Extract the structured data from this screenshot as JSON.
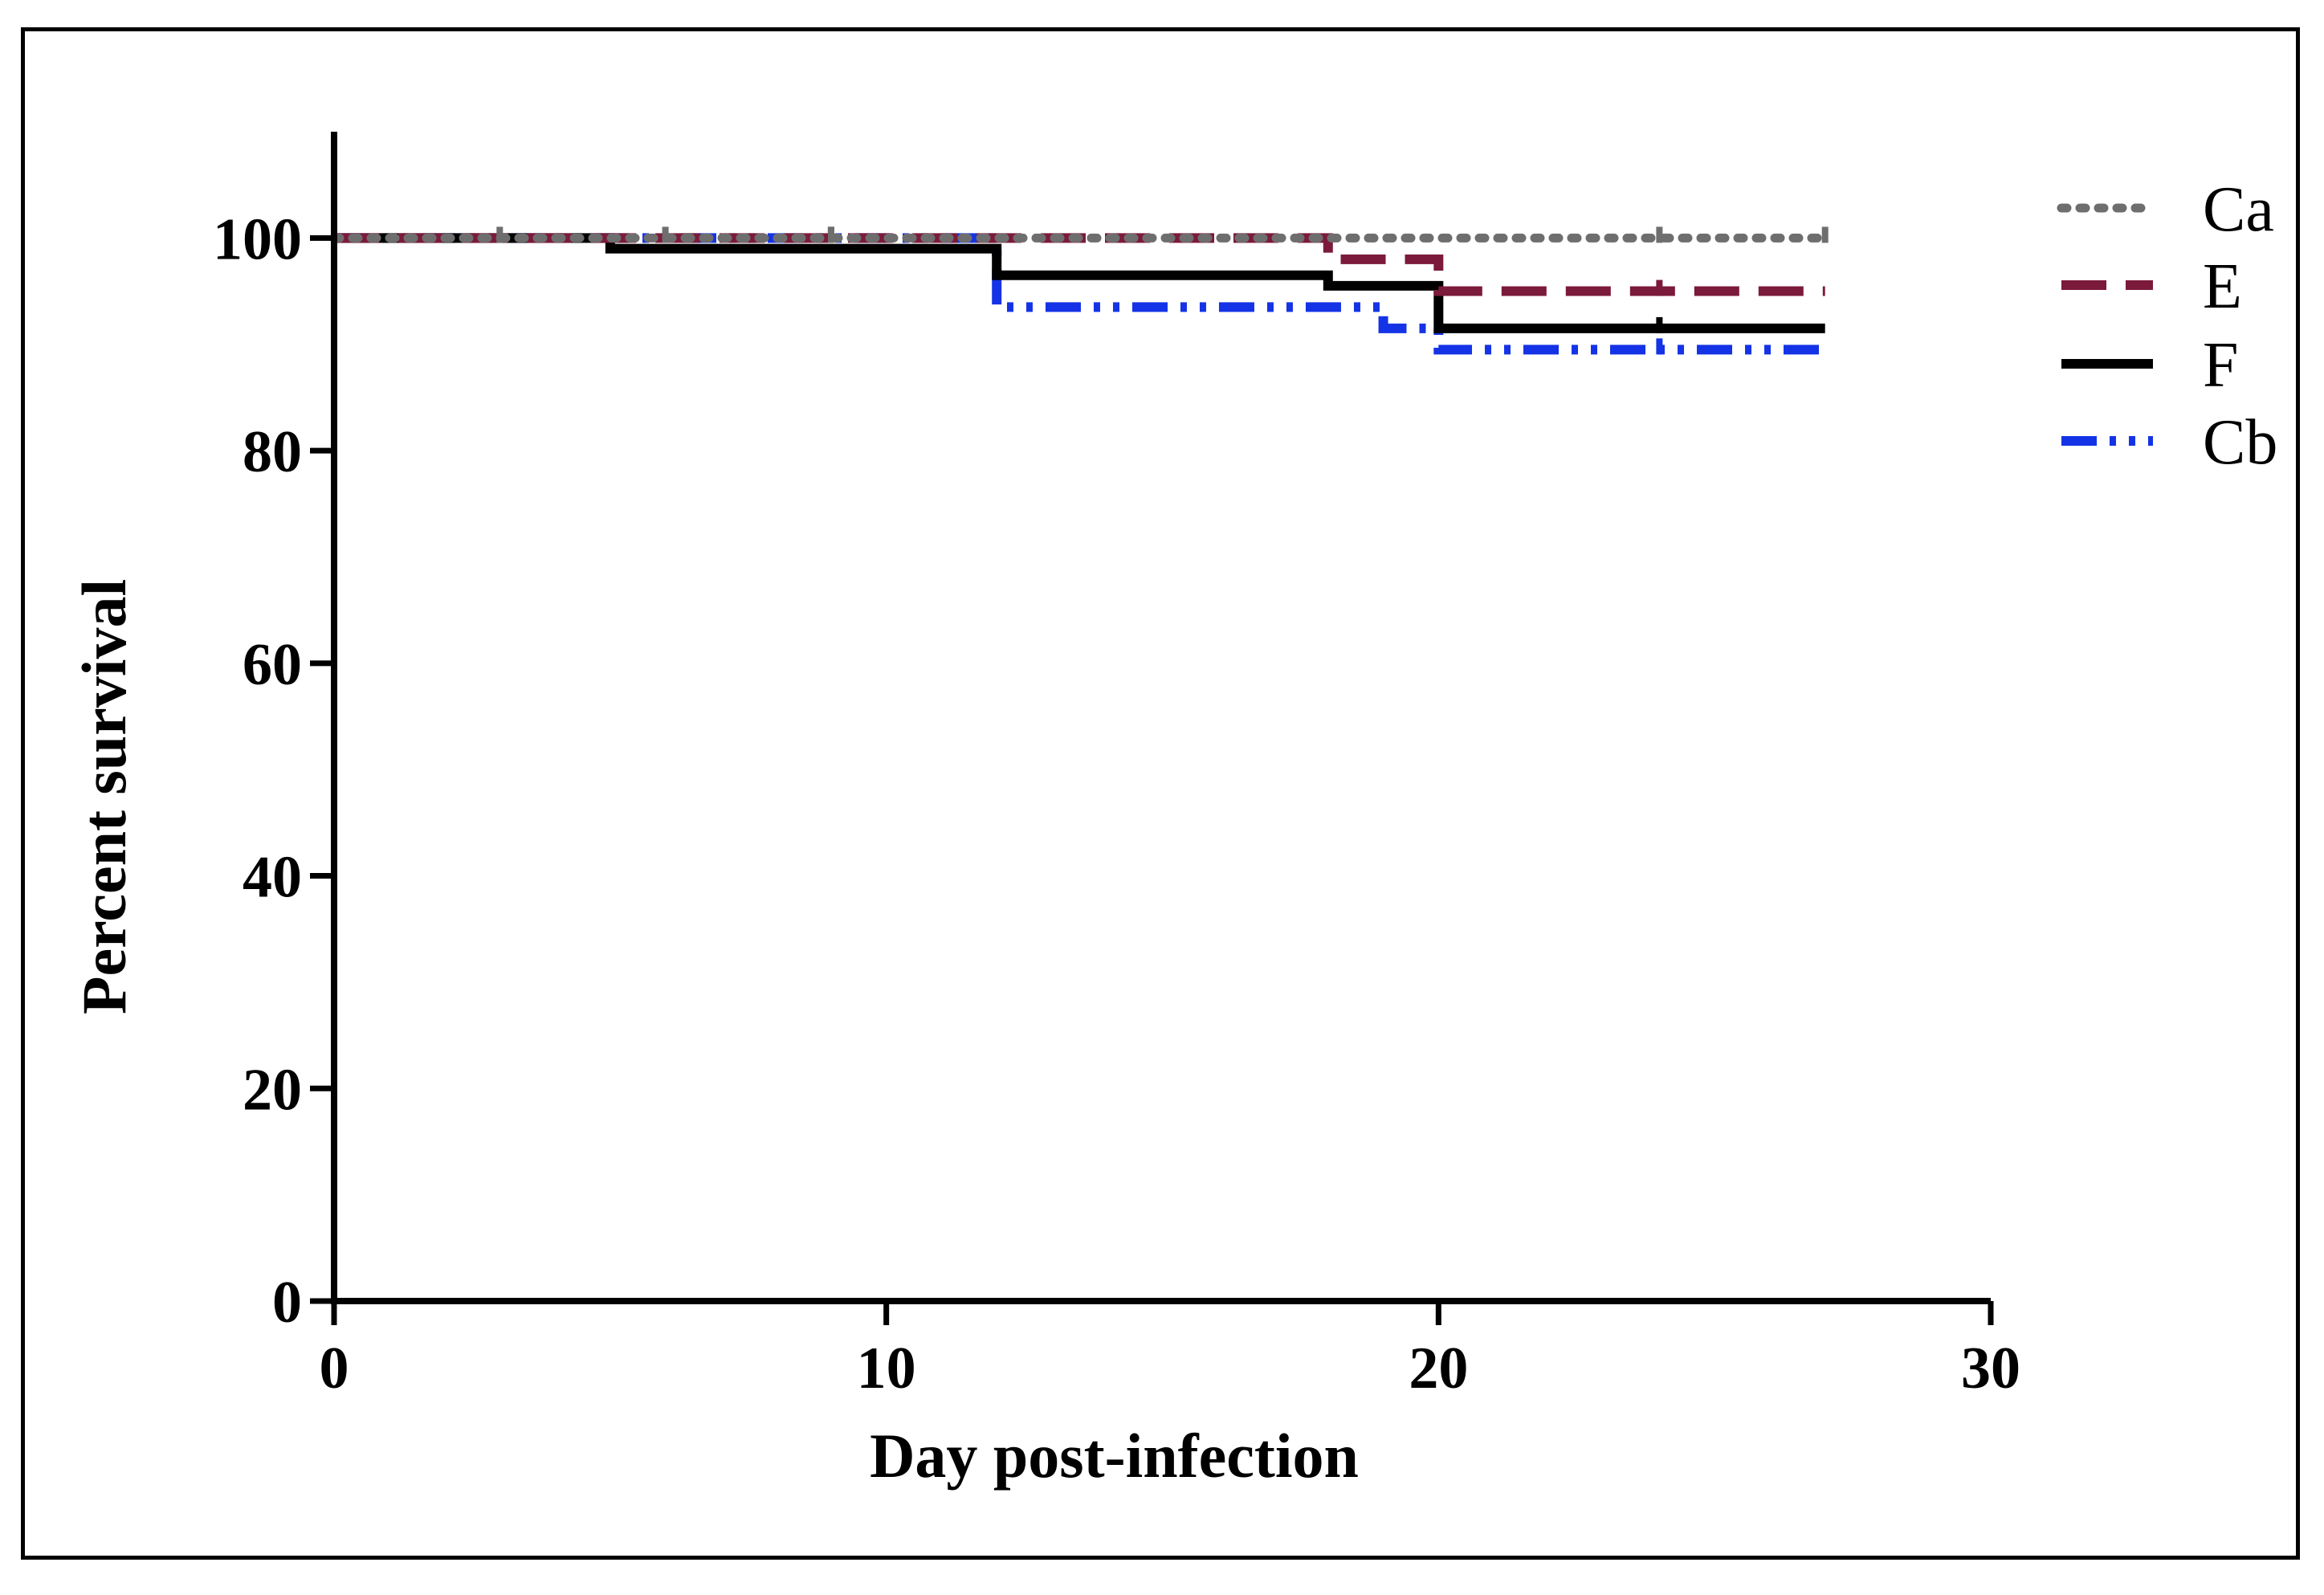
{
  "chart_data": {
    "type": "line",
    "subtype": "step (Kaplan-Meier survival)",
    "title": "",
    "xlabel": "Day post-infection",
    "ylabel": "Percent survival",
    "xlim": [
      0,
      30
    ],
    "ylim": [
      0,
      110
    ],
    "xticks": [
      0,
      10,
      20,
      30
    ],
    "yticks": [
      0,
      20,
      40,
      60,
      80,
      100
    ],
    "grid": false,
    "legend_position": "top-right",
    "series": [
      {
        "name": "Ca",
        "color": "#6e6e6e",
        "style": "dotted",
        "x": [
          0,
          27
        ],
        "y": [
          100,
          100
        ],
        "censor_x": [
          3,
          6,
          9,
          24,
          27
        ],
        "censor_y": [
          100,
          100,
          100,
          100,
          100
        ]
      },
      {
        "name": "E",
        "color": "#7b1a3a",
        "style": "dashed",
        "x": [
          0,
          18,
          20,
          27
        ],
        "y": [
          100,
          98,
          95,
          95
        ],
        "censor_x": [
          9,
          24
        ],
        "censor_y": [
          100,
          95
        ]
      },
      {
        "name": "F",
        "color": "#000000",
        "style": "solid",
        "x": [
          0,
          5,
          12,
          18,
          20,
          27
        ],
        "y": [
          100,
          99,
          96.5,
          95.5,
          91.5,
          91.5
        ],
        "censor_x": [
          24
        ],
        "censor_y": [
          91.5
        ]
      },
      {
        "name": "Cb",
        "color": "#1433e6",
        "style": "dash-dot-dot",
        "x": [
          0,
          12,
          19,
          20,
          27
        ],
        "y": [
          100,
          93.5,
          91.5,
          89.5,
          89.5
        ],
        "censor_x": [
          24
        ],
        "censor_y": [
          89.5
        ]
      }
    ]
  }
}
